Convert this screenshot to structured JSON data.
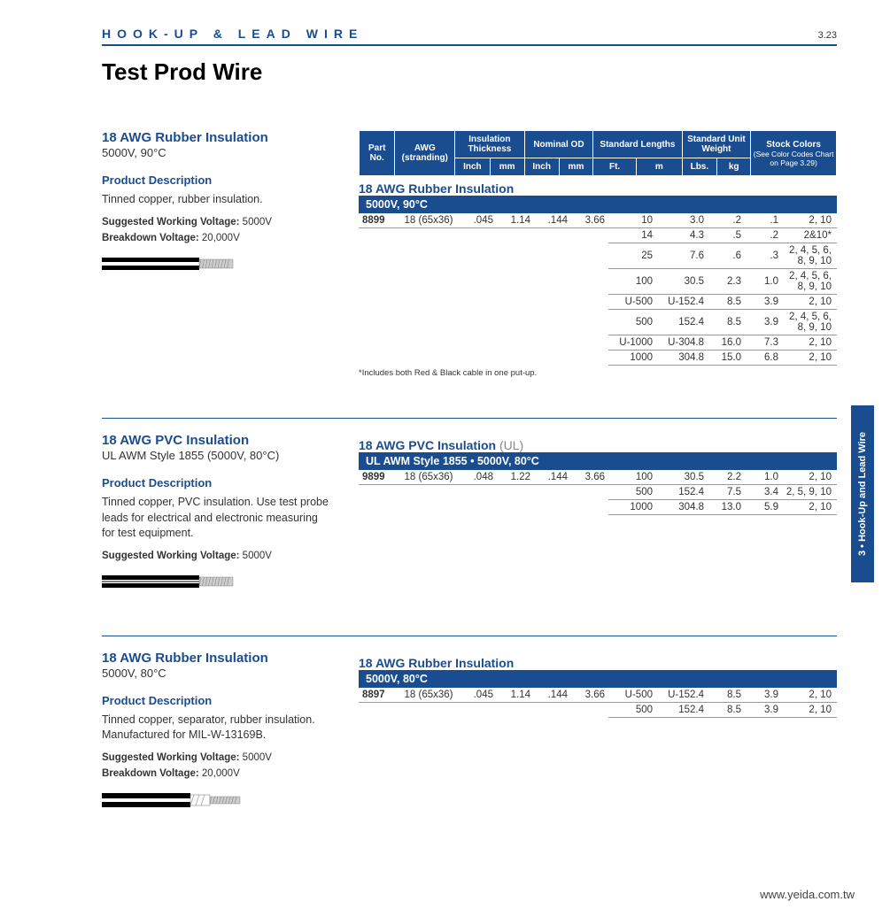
{
  "header": {
    "category": "HOOK-UP & LEAD WIRE",
    "pageNum": "3.23"
  },
  "pageTitle": "Test Prod Wire",
  "sideTab": "3 • Hook-Up and Lead Wire",
  "footer": "www.yeida.com.tw",
  "specHeader": {
    "partNo": "Part No.",
    "awg": "AWG (stranding)",
    "ins": "Insulation Thickness",
    "od": "Nominal OD",
    "len": "Standard Lengths",
    "wt": "Standard Unit Weight",
    "stock": "Stock Colors",
    "stockNote": "(See Color Codes Chart on Page 3.29)",
    "inch": "Inch",
    "mm": "mm",
    "ft": "Ft.",
    "m": "m",
    "lbs": "Lbs.",
    "kg": "kg"
  },
  "products": [
    {
      "title": "18 AWG Rubber Insulation",
      "sub": "5000V, 90°C",
      "descHead": "Product Description",
      "desc": "Tinned copper, rubber insulation.",
      "specs": [
        {
          "label": "Suggested Working Voltage:",
          "val": "5000V"
        },
        {
          "label": "Breakdown Voltage:",
          "val": "20,000V"
        }
      ],
      "wire": "rubber",
      "tableCaption": "18 AWG Rubber Insulation",
      "band": "5000V, 90°C",
      "rows": [
        {
          "pn": "8899",
          "awg": "18 (65x36)",
          "it_in": ".045",
          "it_mm": "1.14",
          "od_in": ".144",
          "od_mm": "3.66",
          "ft": "10",
          "m": "3.0",
          "lbs": ".2",
          "kg": ".1",
          "colors": "2, 10"
        },
        {
          "pn": "",
          "awg": "",
          "it_in": "",
          "it_mm": "",
          "od_in": "",
          "od_mm": "",
          "ft": "14",
          "m": "4.3",
          "lbs": ".5",
          "kg": ".2",
          "colors": "2&10*"
        },
        {
          "pn": "",
          "awg": "",
          "it_in": "",
          "it_mm": "",
          "od_in": "",
          "od_mm": "",
          "ft": "25",
          "m": "7.6",
          "lbs": ".6",
          "kg": ".3",
          "colors": "2, 4, 5, 6, 8, 9, 10"
        },
        {
          "pn": "",
          "awg": "",
          "it_in": "",
          "it_mm": "",
          "od_in": "",
          "od_mm": "",
          "ft": "100",
          "m": "30.5",
          "lbs": "2.3",
          "kg": "1.0",
          "colors": "2, 4, 5, 6, 8, 9, 10"
        },
        {
          "pn": "",
          "awg": "",
          "it_in": "",
          "it_mm": "",
          "od_in": "",
          "od_mm": "",
          "ft": "U-500",
          "m": "U-152.4",
          "lbs": "8.5",
          "kg": "3.9",
          "colors": "2, 10"
        },
        {
          "pn": "",
          "awg": "",
          "it_in": "",
          "it_mm": "",
          "od_in": "",
          "od_mm": "",
          "ft": "500",
          "m": "152.4",
          "lbs": "8.5",
          "kg": "3.9",
          "colors": "2, 4, 5, 6, 8, 9, 10"
        },
        {
          "pn": "",
          "awg": "",
          "it_in": "",
          "it_mm": "",
          "od_in": "",
          "od_mm": "",
          "ft": "U-1000",
          "m": "U-304.8",
          "lbs": "16.0",
          "kg": "7.3",
          "colors": "2, 10"
        },
        {
          "pn": "",
          "awg": "",
          "it_in": "",
          "it_mm": "",
          "od_in": "",
          "od_mm": "",
          "ft": "1000",
          "m": "304.8",
          "lbs": "15.0",
          "kg": "6.8",
          "colors": "2, 10"
        }
      ],
      "footnote": "*Includes both Red & Black cable in one put-up."
    },
    {
      "title": "18 AWG PVC Insulation",
      "sub": "UL AWM Style 1855 (5000V, 80°C)",
      "descHead": "Product Description",
      "desc": "Tinned copper, PVC insulation. Use test probe leads for electrical and electronic measuring for test equipment.",
      "specs": [
        {
          "label": "Suggested Working Voltage:",
          "val": "5000V"
        }
      ],
      "wire": "pvc",
      "tableCaption": "18 AWG PVC Insulation",
      "captionSuffix": "(UL)",
      "band": "UL AWM Style 1855 • 5000V, 80°C",
      "rows": [
        {
          "pn": "9899",
          "awg": "18 (65x36)",
          "it_in": ".048",
          "it_mm": "1.22",
          "od_in": ".144",
          "od_mm": "3.66",
          "ft": "100",
          "m": "30.5",
          "lbs": "2.2",
          "kg": "1.0",
          "colors": "2, 10"
        },
        {
          "pn": "",
          "awg": "",
          "it_in": "",
          "it_mm": "",
          "od_in": "",
          "od_mm": "",
          "ft": "500",
          "m": "152.4",
          "lbs": "7.5",
          "kg": "3.4",
          "colors": "2, 5, 9, 10"
        },
        {
          "pn": "",
          "awg": "",
          "it_in": "",
          "it_mm": "",
          "od_in": "",
          "od_mm": "",
          "ft": "1000",
          "m": "304.8",
          "lbs": "13.0",
          "kg": "5.9",
          "colors": "2, 10"
        }
      ]
    },
    {
      "title": "18 AWG Rubber Insulation",
      "sub": "5000V, 80°C",
      "descHead": "Product Description",
      "desc": "Tinned copper, separator, rubber insulation. Manufactured for MIL-W-13169B.",
      "specs": [
        {
          "label": "Suggested Working Voltage:",
          "val": "5000V"
        },
        {
          "label": "Breakdown Voltage:",
          "val": "20,000V"
        }
      ],
      "wire": "rubber-sep",
      "tableCaption": "18 AWG Rubber Insulation",
      "band": "5000V, 80°C",
      "rows": [
        {
          "pn": "8897",
          "awg": "18 (65x36)",
          "it_in": ".045",
          "it_mm": "1.14",
          "od_in": ".144",
          "od_mm": "3.66",
          "ft": "U-500",
          "m": "U-152.4",
          "lbs": "8.5",
          "kg": "3.9",
          "colors": "2, 10"
        },
        {
          "pn": "",
          "awg": "",
          "it_in": "",
          "it_mm": "",
          "od_in": "",
          "od_mm": "",
          "ft": "500",
          "m": "152.4",
          "lbs": "8.5",
          "kg": "3.9",
          "colors": "2, 10"
        }
      ]
    }
  ],
  "colors": {
    "brand": "#1a4d8f",
    "text": "#333333",
    "grid": "#999999",
    "bg": "#ffffff"
  }
}
